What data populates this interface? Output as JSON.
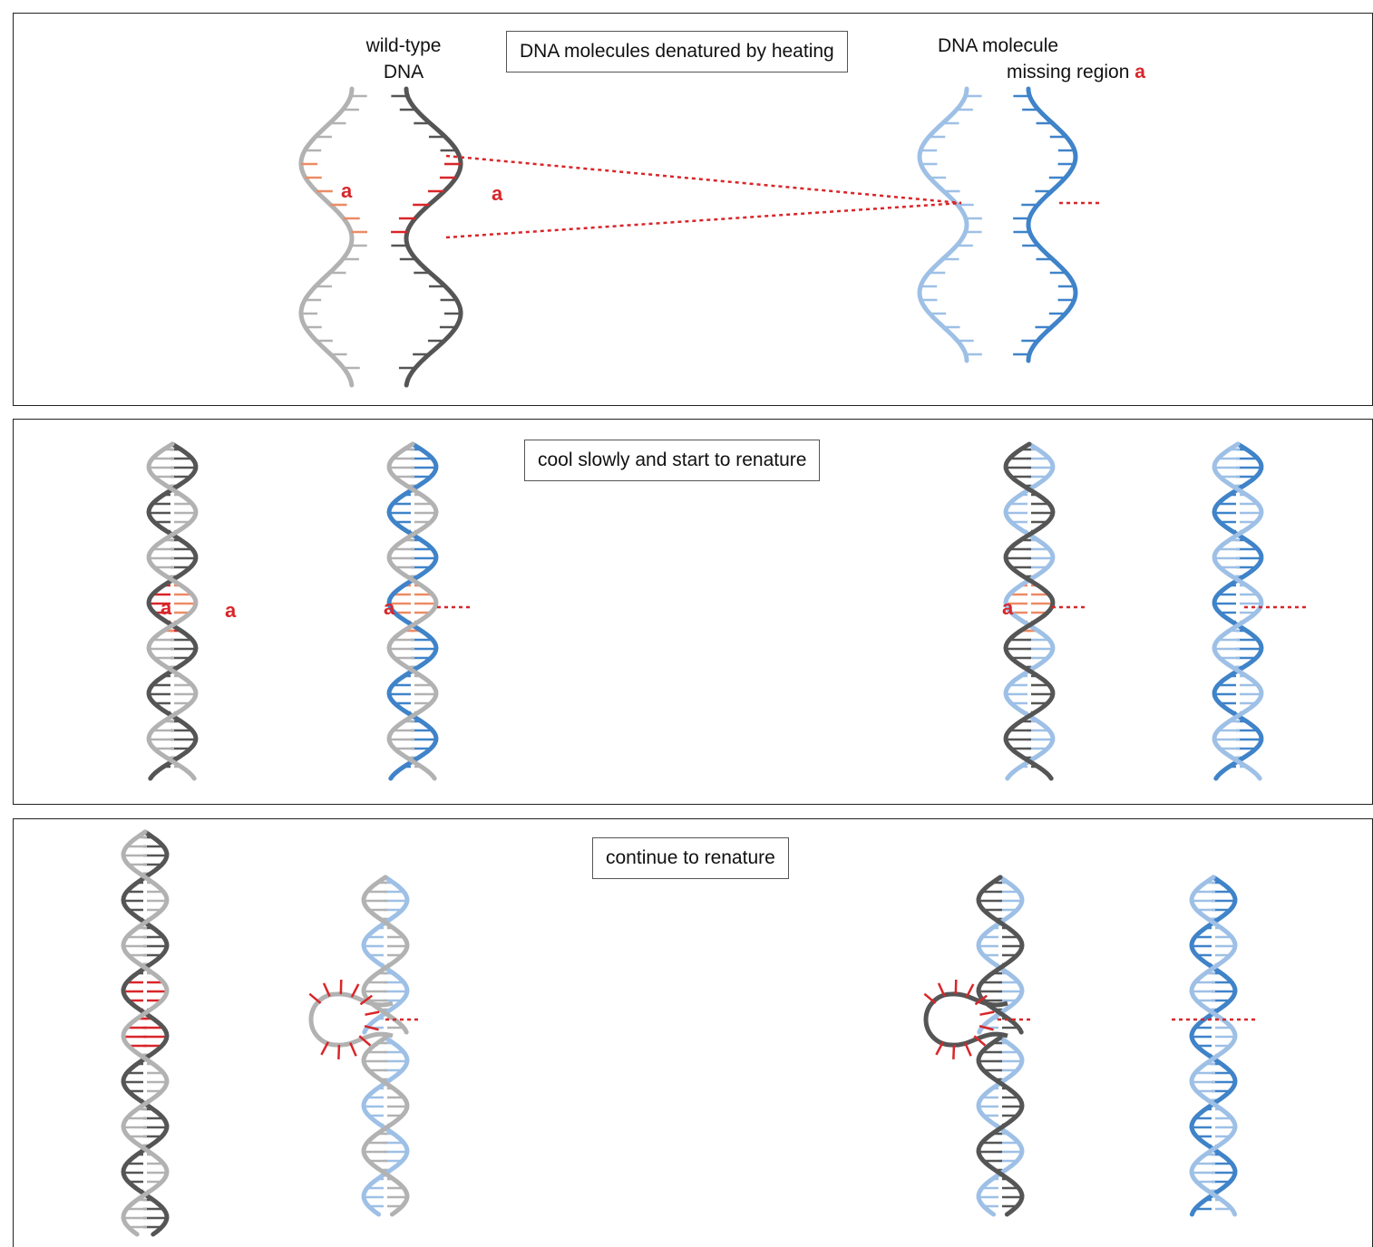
{
  "colors": {
    "light_grey": "#b2b2b2",
    "dark_grey": "#555555",
    "light_blue": "#9ec0e6",
    "blue": "#3f83c9",
    "red": "#d8262a",
    "salmon": "#ec8b65"
  },
  "panel1": {
    "caption": "DNA molecules denatured by heating",
    "wild_type_label_line1": "wild-type",
    "wild_type_label_line2": "DNA",
    "mutant_label_line1": "DNA molecule",
    "mutant_label_line2": "missing region",
    "region_name": "a"
  },
  "panel2": {
    "caption": "cool slowly and start to renature",
    "region_name": "a"
  },
  "panel3": {
    "caption": "continue to renature"
  }
}
